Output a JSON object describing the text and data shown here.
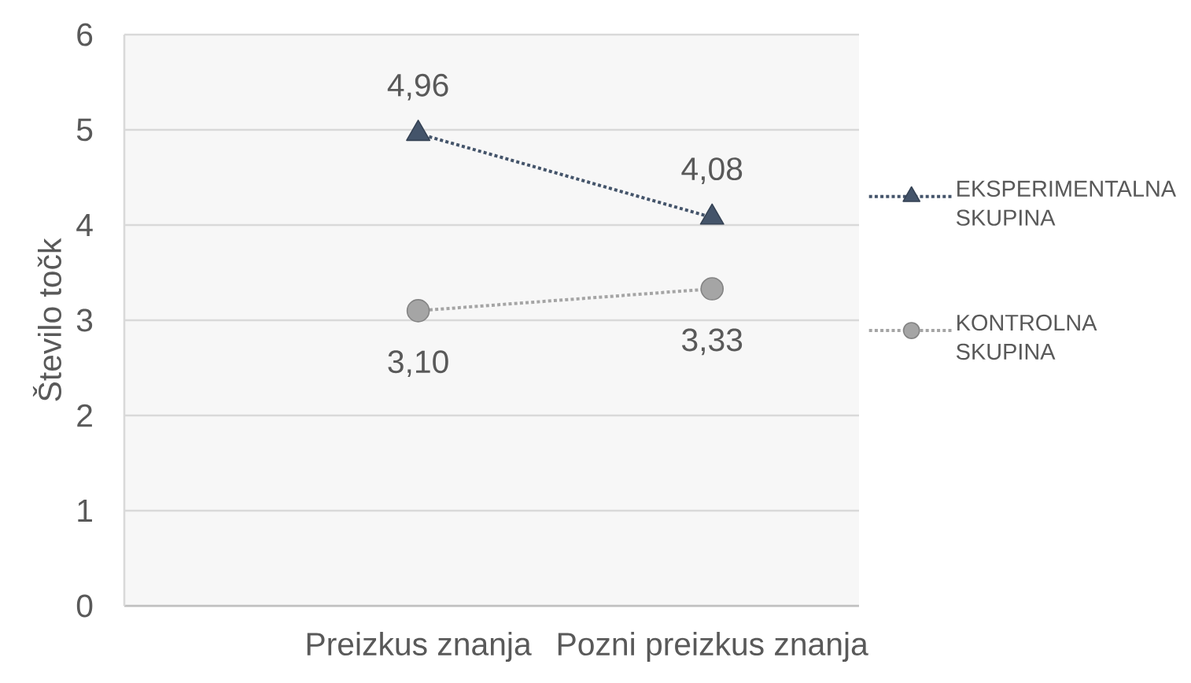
{
  "chart_data": {
    "type": "line",
    "ylabel": "Število točk",
    "categories": [
      "Preizkus znanja",
      "Pozni preizkus znanja"
    ],
    "series": [
      {
        "name": "EKSPERIMENTALNA SKUPINA",
        "color": "#44546a",
        "values": [
          4.96,
          4.08
        ],
        "value_labels": [
          "4,96",
          "4,08"
        ],
        "marker": "triangle"
      },
      {
        "name": "KONTROLNA SKUPINA",
        "color": "#a5a5a5",
        "values": [
          3.1,
          3.33
        ],
        "value_labels": [
          "3,10",
          "3,33"
        ],
        "marker": "circle"
      }
    ],
    "ylim": [
      0,
      6
    ],
    "yticks": [
      0,
      1,
      2,
      3,
      4,
      5,
      6
    ],
    "grid": "y",
    "legend": "right",
    "line_style": "dotted"
  }
}
